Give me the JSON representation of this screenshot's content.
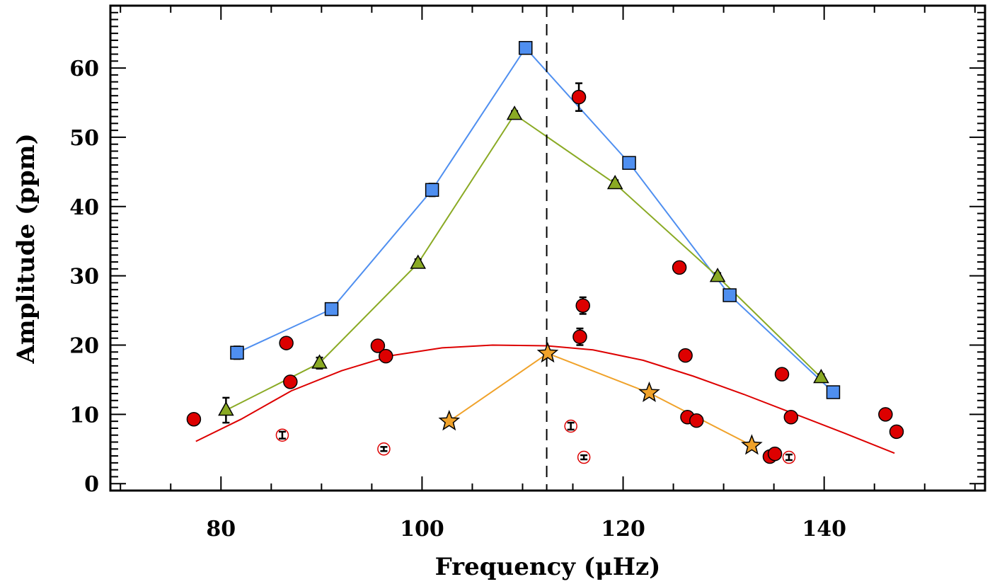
{
  "chart_data": {
    "type": "scatter",
    "xlabel": "Frequency (μHz)",
    "ylabel": "Amplitude (ppm)",
    "xlim": [
      69,
      156
    ],
    "ylim": [
      -1,
      69
    ],
    "x_ticks": [
      80,
      100,
      120,
      140
    ],
    "y_ticks": [
      0,
      10,
      20,
      30,
      40,
      50,
      60
    ],
    "x_tick_labels": [
      "80",
      "100",
      "120",
      "140"
    ],
    "y_tick_labels": [
      "0",
      "10",
      "20",
      "30",
      "40",
      "50",
      "60"
    ],
    "grid": false,
    "legend": "none",
    "vline": {
      "x": 112.4,
      "style": "dashed",
      "color": "#000000"
    },
    "series": [
      {
        "marker": "square",
        "color": "#4f8ff0",
        "connected": true,
        "line_color": "#4f8ff0",
        "points": [
          {
            "x": 81.6,
            "y": 18.9,
            "err": 0.9
          },
          {
            "x": 91.0,
            "y": 25.2,
            "err": 0.7
          },
          {
            "x": 101.0,
            "y": 42.4,
            "err": 0.9
          },
          {
            "x": 110.3,
            "y": 62.9,
            "err": 0.6
          },
          {
            "x": 120.6,
            "y": 46.3,
            "err": 0.7
          },
          {
            "x": 130.6,
            "y": 27.2,
            "err": 0.6
          },
          {
            "x": 140.9,
            "y": 13.2,
            "err": 0.6
          }
        ]
      },
      {
        "marker": "triangle",
        "color": "#8aaa24",
        "connected": true,
        "line_color": "#8aaa24",
        "points": [
          {
            "x": 80.5,
            "y": 10.6,
            "err": 1.8
          },
          {
            "x": 89.8,
            "y": 17.4,
            "err": 0.8
          },
          {
            "x": 99.6,
            "y": 31.8,
            "err": 0.6
          },
          {
            "x": 109.2,
            "y": 53.3,
            "err": 0.5
          },
          {
            "x": 119.2,
            "y": 43.3,
            "err": 0.5
          },
          {
            "x": 129.4,
            "y": 29.9,
            "err": 0.5
          },
          {
            "x": 139.7,
            "y": 15.3,
            "err": 0.5
          }
        ]
      },
      {
        "marker": "star",
        "color": "#f0a22a",
        "connected": true,
        "line_color": "#f0a22a",
        "points": [
          {
            "x": 102.7,
            "y": 9.0
          },
          {
            "x": 112.5,
            "y": 18.8
          },
          {
            "x": 122.6,
            "y": 13.1
          },
          {
            "x": 132.8,
            "y": 5.5
          }
        ]
      },
      {
        "marker": "circle",
        "color": "#dd0000",
        "connected": false,
        "points": [
          {
            "x": 77.3,
            "y": 9.3,
            "err": 0.7
          },
          {
            "x": 86.5,
            "y": 20.3,
            "err": 0.7
          },
          {
            "x": 86.9,
            "y": 14.7
          },
          {
            "x": 95.6,
            "y": 19.9,
            "err": 0.8
          },
          {
            "x": 96.4,
            "y": 18.4
          },
          {
            "x": 115.6,
            "y": 55.8,
            "err": 2.0
          },
          {
            "x": 116.0,
            "y": 25.7,
            "err": 1.2
          },
          {
            "x": 115.7,
            "y": 21.2,
            "err": 1.2
          },
          {
            "x": 125.6,
            "y": 31.2,
            "err": 0.7
          },
          {
            "x": 126.2,
            "y": 18.5
          },
          {
            "x": 126.4,
            "y": 9.6
          },
          {
            "x": 127.3,
            "y": 9.1
          },
          {
            "x": 134.6,
            "y": 3.9
          },
          {
            "x": 135.1,
            "y": 4.3
          },
          {
            "x": 135.8,
            "y": 15.8
          },
          {
            "x": 136.7,
            "y": 9.6
          },
          {
            "x": 146.1,
            "y": 10.0
          },
          {
            "x": 147.2,
            "y": 7.5
          }
        ]
      },
      {
        "marker": "open-circle",
        "color": "#dd0000",
        "connected": false,
        "points": [
          {
            "x": 86.1,
            "y": 7.0,
            "err": 0.5
          },
          {
            "x": 96.2,
            "y": 5.0,
            "err": 0.3
          },
          {
            "x": 114.8,
            "y": 8.3,
            "err": 0.5
          },
          {
            "x": 116.1,
            "y": 3.8,
            "err": 0.3
          },
          {
            "x": 136.5,
            "y": 3.8,
            "err": 0.4
          }
        ]
      }
    ],
    "curve": {
      "color": "#dd0000",
      "type": "gaussian",
      "peak_x": 109.3,
      "peak_y": 20.0,
      "points": [
        {
          "x": 77.5,
          "y": 6.1
        },
        {
          "x": 82.0,
          "y": 9.3
        },
        {
          "x": 87.0,
          "y": 13.4
        },
        {
          "x": 92.0,
          "y": 16.3
        },
        {
          "x": 97.0,
          "y": 18.5
        },
        {
          "x": 102.0,
          "y": 19.6
        },
        {
          "x": 107.0,
          "y": 20.0
        },
        {
          "x": 112.4,
          "y": 19.9
        },
        {
          "x": 117.0,
          "y": 19.3
        },
        {
          "x": 122.0,
          "y": 17.8
        },
        {
          "x": 127.0,
          "y": 15.5
        },
        {
          "x": 132.0,
          "y": 12.9
        },
        {
          "x": 137.0,
          "y": 10.1
        },
        {
          "x": 142.0,
          "y": 7.3
        },
        {
          "x": 147.0,
          "y": 4.4
        }
      ]
    }
  }
}
